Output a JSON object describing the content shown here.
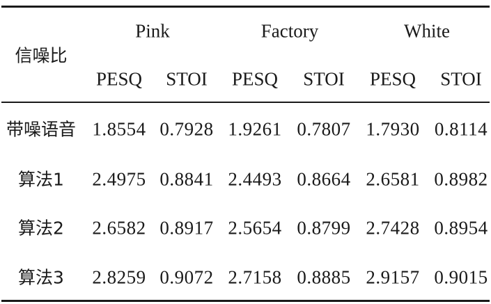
{
  "table": {
    "row_header": "信噪比",
    "noise_types": [
      "Pink",
      "Factory",
      "White"
    ],
    "metrics": [
      "PESQ",
      "STOI",
      "PESQ",
      "STOI",
      "PESQ",
      "STOI"
    ],
    "rows": [
      {
        "label": "带噪语音",
        "values": [
          "1.8554",
          "0.7928",
          "1.9261",
          "0.7807",
          "1.7930",
          "0.8114"
        ]
      },
      {
        "label": "算法1",
        "values": [
          "2.4975",
          "0.8841",
          "2.4493",
          "0.8664",
          "2.6581",
          "0.8982"
        ]
      },
      {
        "label": "算法2",
        "values": [
          "2.6582",
          "0.8917",
          "2.5654",
          "0.8799",
          "2.7428",
          "0.8954"
        ]
      },
      {
        "label": "算法3",
        "values": [
          "2.8259",
          "0.9072",
          "2.7158",
          "0.8885",
          "2.9157",
          "0.9015"
        ]
      }
    ]
  }
}
